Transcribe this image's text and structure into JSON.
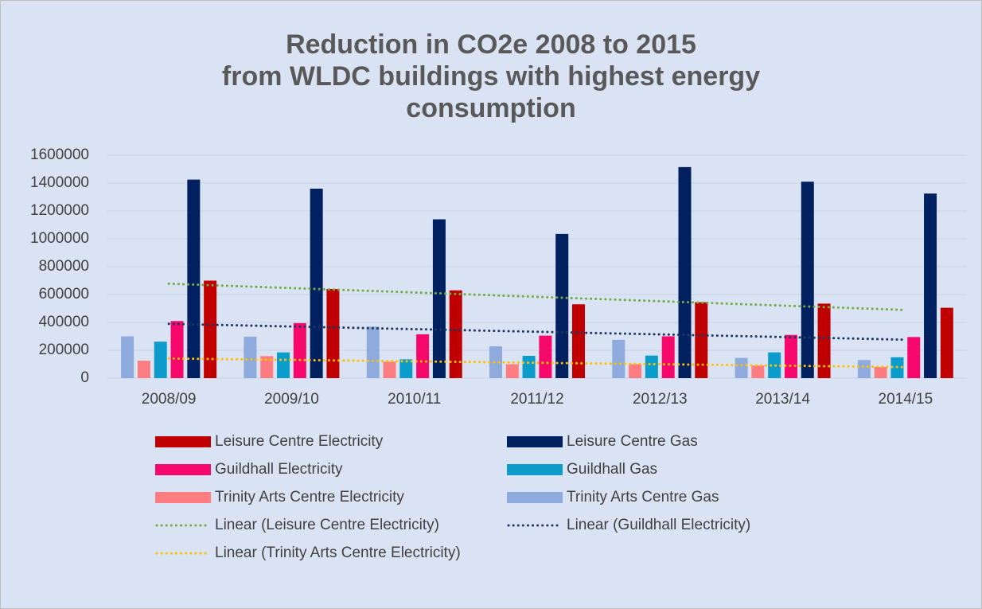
{
  "chart_data": {
    "type": "bar",
    "title": "Reduction in CO2e 2008 to 2015\nfrom WLDC buildings with highest energy consumption",
    "categories": [
      "2008/09",
      "2009/10",
      "2010/11",
      "2011/12",
      "2012/13",
      "2013/14",
      "2014/15"
    ],
    "series": [
      {
        "name": "Leisure Centre Electricity",
        "color": "#c00000",
        "values": [
          700000,
          640000,
          630000,
          530000,
          545000,
          535000,
          505000
        ],
        "trendline": {
          "name": "Linear (Leisure Centre Electricity)",
          "color": "#70ad47"
        }
      },
      {
        "name": "Leisure Centre Gas",
        "color": "#002060",
        "values": [
          1425000,
          1360000,
          1140000,
          1035000,
          1515000,
          1410000,
          1325000
        ]
      },
      {
        "name": "Guildhall Electricity",
        "color": "#f5086a",
        "values": [
          410000,
          395000,
          315000,
          305000,
          300000,
          310000,
          295000
        ],
        "trendline": {
          "name": "Linear (Guildhall Electricity)",
          "color": "#203864"
        }
      },
      {
        "name": "Guildhall Gas",
        "color": "#0c9ccb",
        "values": [
          262000,
          185000,
          135000,
          160000,
          162000,
          185000,
          150000
        ]
      },
      {
        "name": "Trinity Arts Centre Electricity",
        "color": "#ff7c80",
        "values": [
          125000,
          158000,
          118000,
          100000,
          100000,
          90000,
          80000
        ],
        "trendline": {
          "name": "Linear (Trinity Arts Centre Electricity)",
          "color": "#ffc000"
        }
      },
      {
        "name": "Trinity Arts Centre Gas",
        "color": "#8faadc",
        "values": [
          300000,
          298000,
          370000,
          228000,
          275000,
          145000,
          130000
        ]
      }
    ],
    "ylim": [
      0,
      1600000
    ],
    "yticks": [
      0,
      200000,
      400000,
      600000,
      800000,
      1000000,
      1200000,
      1400000,
      1600000
    ],
    "grid": true
  }
}
